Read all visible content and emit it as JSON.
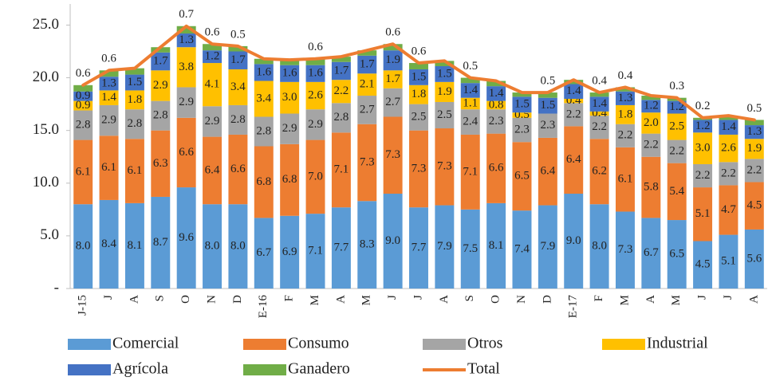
{
  "chart_data": {
    "type": "bar",
    "stacked": true,
    "categories": [
      "J-15",
      "J",
      "A",
      "S",
      "O",
      "N",
      "D",
      "E-16",
      "F",
      "M",
      "A",
      "M",
      "J",
      "J",
      "A",
      "S",
      "O",
      "N",
      "D",
      "E-17",
      "F",
      "M",
      "A",
      "M",
      "J",
      "J",
      "A"
    ],
    "series": [
      {
        "name": "Comercial",
        "color": "#5b9bd5",
        "values": [
          8.0,
          8.4,
          8.1,
          8.7,
          9.6,
          8.0,
          8.0,
          6.7,
          6.9,
          7.1,
          7.7,
          8.3,
          9.0,
          7.7,
          7.9,
          7.5,
          8.1,
          7.4,
          7.9,
          9.0,
          8.0,
          7.3,
          6.7,
          6.5,
          4.5,
          5.1,
          5.6
        ],
        "value_labels": [
          "8.0",
          "8.4",
          "8.1",
          "8.7",
          "9.6",
          "8.0",
          "8.0",
          "6.7",
          "6.9",
          "7.1",
          "7.7",
          "8.3",
          "9.0",
          "7.7",
          "7.9",
          "7.5",
          "8.1",
          "7.4",
          "7.9",
          "9.0",
          "8.0",
          "7.3",
          "6.7",
          "6.5",
          "4.5",
          "5.1",
          "5.6"
        ]
      },
      {
        "name": "Consumo",
        "color": "#ed7d31",
        "values": [
          6.1,
          6.1,
          6.1,
          6.3,
          6.6,
          6.4,
          6.6,
          6.8,
          6.8,
          7.0,
          7.1,
          7.3,
          7.3,
          7.3,
          7.3,
          7.1,
          6.6,
          6.5,
          6.4,
          6.4,
          6.2,
          6.1,
          5.8,
          5.4,
          5.1,
          4.7,
          4.5
        ],
        "value_labels": [
          "6.1",
          "6.1",
          "6.1",
          "6.3",
          "6.6",
          "6.4",
          "6.6",
          "6.8",
          "6.8",
          "7.0",
          "7.1",
          "7.3",
          "7.3",
          "7.3",
          "7.3",
          "7.1",
          "6.6",
          "6.5",
          "6.4",
          "6.4",
          "6.2",
          "6.1",
          "5.8",
          "5.4",
          "5.1",
          "4.7",
          "4.5"
        ]
      },
      {
        "name": "Otros",
        "color": "#a5a5a5",
        "values": [
          2.8,
          2.9,
          2.8,
          2.8,
          2.9,
          2.9,
          2.8,
          2.8,
          2.9,
          2.9,
          2.8,
          2.7,
          2.7,
          2.5,
          2.5,
          2.4,
          2.3,
          2.3,
          2.3,
          2.2,
          2.2,
          2.2,
          2.2,
          2.2,
          2.2,
          2.2,
          2.2
        ],
        "value_labels": [
          "2.8",
          "2.9",
          "2.8",
          "2.8",
          "2.9",
          "2.9",
          "2.8",
          "2.8",
          "2.9",
          "2.9",
          "2.8",
          "2.7",
          "2.7",
          "2.5",
          "2.5",
          "2.4",
          "2.3",
          "2.3",
          "2.3",
          "2.2",
          "2.2",
          "2.2",
          "2.2",
          "2.2",
          "2.2",
          "2.2",
          "2.2"
        ]
      },
      {
        "name": "Industrial",
        "color": "#ffc000",
        "values": [
          0.9,
          1.4,
          1.8,
          2.9,
          3.8,
          4.1,
          3.4,
          3.4,
          3.0,
          2.6,
          2.2,
          2.1,
          1.7,
          1.8,
          1.9,
          1.1,
          0.8,
          0.5,
          null,
          0.4,
          0.4,
          1.8,
          2.0,
          2.5,
          3.0,
          2.6,
          1.9
        ],
        "value_labels": [
          "0.9",
          "1.4",
          "1.8",
          "2.9",
          "3.8",
          "4.1",
          "3.4",
          "3.4",
          "3.0",
          "2.6",
          "2.2",
          "2.1",
          "1.7",
          "1.8",
          "1.9",
          "1.1",
          "0.8",
          "0.5",
          null,
          "0.4",
          "0.4",
          "1.8",
          "2.0",
          "2.5",
          "3.0",
          "2.6",
          "1.9"
        ]
      },
      {
        "name": "Agrícola",
        "color": "#4472c4",
        "values": [
          0.9,
          1.3,
          1.5,
          1.7,
          1.3,
          1.2,
          1.7,
          1.6,
          1.6,
          1.6,
          1.7,
          1.7,
          1.9,
          1.5,
          1.5,
          1.4,
          1.4,
          1.5,
          1.5,
          1.4,
          1.4,
          1.3,
          1.2,
          1.2,
          1.2,
          1.4,
          1.3
        ],
        "value_labels": [
          "0.9",
          "1.3",
          "1.5",
          "1.7",
          "1.3",
          "1.2",
          "1.7",
          "1.6",
          "1.6",
          "1.6",
          "1.7",
          "1.7",
          "1.9",
          "1.5",
          "1.5",
          "1.4",
          "1.4",
          "1.5",
          "1.5",
          "1.4",
          "1.4",
          "1.3",
          "1.2",
          "1.2",
          "1.2",
          "1.4",
          "1.3"
        ]
      },
      {
        "name": "Ganadero",
        "color": "#70ad47",
        "values": [
          0.6,
          0.6,
          0.6,
          0.5,
          0.7,
          0.6,
          0.5,
          0.5,
          0.5,
          0.6,
          0.5,
          0.5,
          0.6,
          0.6,
          0.5,
          0.5,
          0.5,
          0.4,
          0.5,
          0.4,
          0.4,
          0.4,
          0.4,
          0.3,
          0.2,
          0.4,
          0.5
        ],
        "value_labels": [
          "0.6",
          "0.6",
          null,
          null,
          "0.7",
          "0.6",
          "0.5",
          null,
          null,
          "0.6",
          null,
          null,
          "0.6",
          "0.6",
          null,
          "0.5",
          null,
          null,
          "0.5",
          null,
          "0.4",
          "0.4",
          null,
          "0.3",
          "0.2",
          null,
          "0.5"
        ]
      },
      {
        "name": "Total",
        "color": "#ed7d31",
        "type": "line",
        "values": [
          19.3,
          20.7,
          20.9,
          22.9,
          24.9,
          23.2,
          23.0,
          21.8,
          21.7,
          21.8,
          22.0,
          22.6,
          23.2,
          21.4,
          21.6,
          20.0,
          19.7,
          18.6,
          18.6,
          19.8,
          18.6,
          19.1,
          18.3,
          18.1,
          16.2,
          16.4,
          16.0
        ]
      }
    ],
    "ylim": [
      0,
      27
    ],
    "yticks": [
      {
        "value": 0,
        "label": "-"
      },
      {
        "value": 5,
        "label": "5.0"
      },
      {
        "value": 10,
        "label": "10.0"
      },
      {
        "value": 15,
        "label": "15.0"
      },
      {
        "value": 20,
        "label": "20.0"
      },
      {
        "value": 25,
        "label": "25.0"
      }
    ],
    "legend": "bottom"
  }
}
